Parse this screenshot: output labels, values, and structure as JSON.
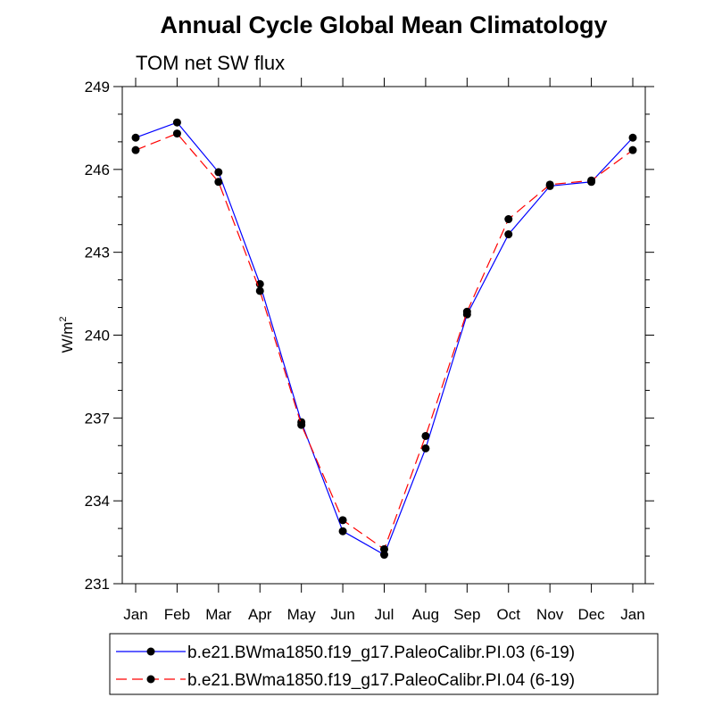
{
  "chart_data": {
    "type": "line",
    "title": "Annual Cycle Global Mean Climatology",
    "subtitle": "TOM net SW flux",
    "xlabel": "",
    "ylabel_base": "W/m",
    "ylabel_sup": "2",
    "categories": [
      "Jan",
      "Feb",
      "Mar",
      "Apr",
      "May",
      "Jun",
      "Jul",
      "Aug",
      "Sep",
      "Oct",
      "Nov",
      "Dec",
      "Jan"
    ],
    "ylim": [
      231,
      249
    ],
    "yticks": [
      231,
      234,
      237,
      240,
      243,
      246,
      249
    ],
    "grid": false,
    "legend_position": "bottom",
    "series": [
      {
        "name": "b.e21.BWma1850.f19_g17.PaleoCalibr.PI.03 (6-19)",
        "color": "#0000ff",
        "dash": "solid",
        "marker": "filled-circle",
        "values": [
          247.15,
          247.7,
          245.9,
          241.85,
          236.85,
          232.9,
          232.05,
          235.9,
          240.75,
          243.65,
          245.4,
          245.55,
          247.15
        ]
      },
      {
        "name": "b.e21.BWma1850.f19_g17.PaleoCalibr.PI.04 (6-19)",
        "color": "#ff0000",
        "dash": "dashed",
        "marker": "filled-circle",
        "values": [
          246.7,
          247.3,
          245.55,
          241.6,
          236.75,
          233.3,
          232.25,
          236.35,
          240.85,
          244.2,
          245.45,
          245.6,
          246.7
        ]
      }
    ]
  }
}
